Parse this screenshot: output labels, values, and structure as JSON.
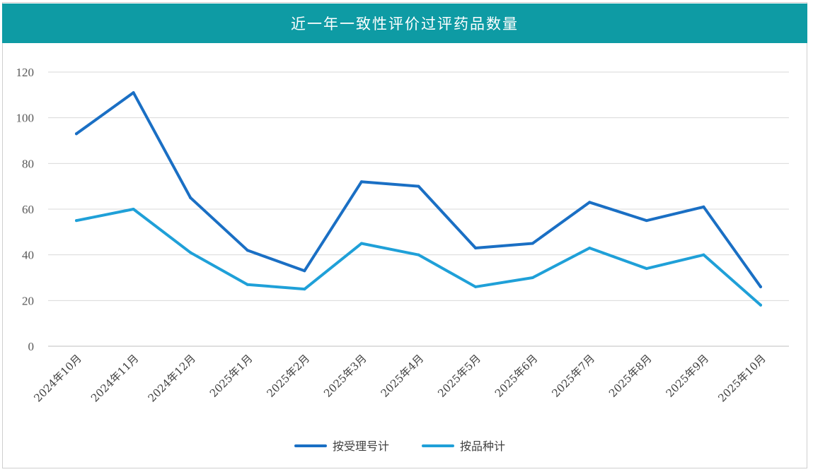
{
  "title": "近一年一致性评价过评药品数量",
  "chart_data": {
    "type": "line",
    "title": "近一年一致性评价过评药品数量",
    "categories": [
      "2024年10月",
      "2024年11月",
      "2024年12月",
      "2025年1月",
      "2025年2月",
      "2025年3月",
      "2025年4月",
      "2025年5月",
      "2025年6月",
      "2025年7月",
      "2025年8月",
      "2025年9月",
      "2025年10月"
    ],
    "series": [
      {
        "name": "按受理号计",
        "color": "#1a6fc4",
        "values": [
          93,
          111,
          65,
          42,
          33,
          72,
          70,
          43,
          45,
          63,
          55,
          61,
          26
        ]
      },
      {
        "name": "按品种计",
        "color": "#1fa0d8",
        "values": [
          55,
          60,
          41,
          27,
          25,
          45,
          40,
          26,
          30,
          43,
          34,
          40,
          18
        ]
      }
    ],
    "ylim": [
      0,
      120
    ],
    "yticks": [
      0,
      20,
      40,
      60,
      80,
      100,
      120
    ],
    "xlabel": "",
    "ylabel": "",
    "grid": true,
    "legend": "bottom"
  }
}
